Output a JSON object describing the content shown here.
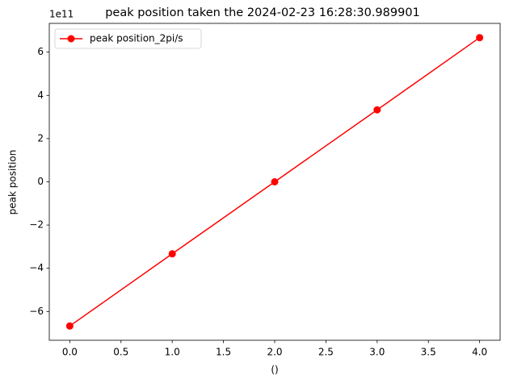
{
  "chart_data": {
    "type": "line",
    "title": "peak position taken the 2024-02-23 16:28:30.989901",
    "x_label": "()",
    "y_label": "peak position",
    "offset_label": "1e11",
    "x": [
      0,
      1,
      2,
      3,
      4
    ],
    "series": [
      {
        "name": "peak position_2pi/s",
        "color": "#ff0000",
        "values": [
          -6.67,
          -3.33,
          0,
          3.33,
          6.67
        ]
      }
    ],
    "xlim": [
      -0.2,
      4.2
    ],
    "xticks": [
      {
        "value": 0,
        "label": "0.0"
      },
      {
        "value": 0.5,
        "label": "0.5"
      },
      {
        "value": 1,
        "label": "1.0"
      },
      {
        "value": 1.5,
        "label": "1.5"
      },
      {
        "value": 2,
        "label": "2.0"
      },
      {
        "value": 2.5,
        "label": "2.5"
      },
      {
        "value": 3,
        "label": "3.0"
      },
      {
        "value": 3.5,
        "label": "3.5"
      },
      {
        "value": 4,
        "label": "4.0"
      }
    ],
    "ylim": [
      -7.33,
      7.33
    ],
    "yticks": [
      {
        "value": -6,
        "label": "−6"
      },
      {
        "value": -4,
        "label": "−4"
      },
      {
        "value": -2,
        "label": "−2"
      },
      0,
      2,
      4,
      6
    ],
    "legend": "upper-left",
    "grid": false
  }
}
